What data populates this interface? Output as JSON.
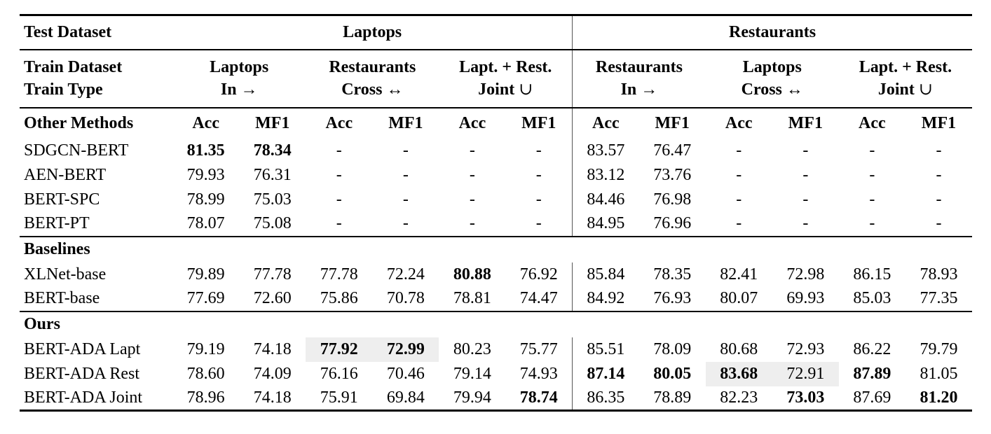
{
  "colors": {
    "background": "#ffffff",
    "text": "#000000",
    "rule": "#000000",
    "divider": "#555555",
    "highlight": "#eeeeee"
  },
  "table": {
    "header": {
      "test_dataset_label": "Test Dataset",
      "test_groups": [
        "Laptops",
        "Restaurants"
      ],
      "train_dataset_label": "Train Dataset",
      "train_type_label": "Train Type",
      "train_groups": [
        {
          "dataset": "Laptops",
          "type": "In",
          "symbol": "→"
        },
        {
          "dataset": "Restaurants",
          "type": "Cross",
          "symbol": "↔"
        },
        {
          "dataset": "Lapt. + Rest.",
          "type": "Joint",
          "symbol": "∪"
        },
        {
          "dataset": "Restaurants",
          "type": "In",
          "symbol": "→"
        },
        {
          "dataset": "Laptops",
          "type": "Cross",
          "symbol": "↔"
        },
        {
          "dataset": "Lapt. + Rest.",
          "type": "Joint",
          "symbol": "∪"
        }
      ],
      "first_section_label": "Other Methods",
      "metric_labels": [
        "Acc",
        "MF1",
        "Acc",
        "MF1",
        "Acc",
        "MF1",
        "Acc",
        "MF1",
        "Acc",
        "MF1",
        "Acc",
        "MF1"
      ]
    },
    "sections": [
      {
        "label": null,
        "rows": [
          {
            "method": "SDGCN-BERT",
            "cells": [
              {
                "text": "81.35",
                "bold": true
              },
              {
                "text": "78.34",
                "bold": true
              },
              {
                "text": "-"
              },
              {
                "text": "-"
              },
              {
                "text": "-"
              },
              {
                "text": "-"
              },
              {
                "text": "83.57"
              },
              {
                "text": "76.47"
              },
              {
                "text": "-"
              },
              {
                "text": "-"
              },
              {
                "text": "-"
              },
              {
                "text": "-"
              }
            ]
          },
          {
            "method": "AEN-BERT",
            "cells": [
              {
                "text": "79.93"
              },
              {
                "text": "76.31"
              },
              {
                "text": "-"
              },
              {
                "text": "-"
              },
              {
                "text": "-"
              },
              {
                "text": "-"
              },
              {
                "text": "83.12"
              },
              {
                "text": "73.76"
              },
              {
                "text": "-"
              },
              {
                "text": "-"
              },
              {
                "text": "-"
              },
              {
                "text": "-"
              }
            ]
          },
          {
            "method": "BERT-SPC",
            "cells": [
              {
                "text": "78.99"
              },
              {
                "text": "75.03"
              },
              {
                "text": "-"
              },
              {
                "text": "-"
              },
              {
                "text": "-"
              },
              {
                "text": "-"
              },
              {
                "text": "84.46"
              },
              {
                "text": "76.98"
              },
              {
                "text": "-"
              },
              {
                "text": "-"
              },
              {
                "text": "-"
              },
              {
                "text": "-"
              }
            ]
          },
          {
            "method": "BERT-PT",
            "cells": [
              {
                "text": "78.07"
              },
              {
                "text": "75.08"
              },
              {
                "text": "-"
              },
              {
                "text": "-"
              },
              {
                "text": "-"
              },
              {
                "text": "-"
              },
              {
                "text": "84.95"
              },
              {
                "text": "76.96"
              },
              {
                "text": "-"
              },
              {
                "text": "-"
              },
              {
                "text": "-"
              },
              {
                "text": "-"
              }
            ]
          }
        ]
      },
      {
        "label": "Baselines",
        "rows": [
          {
            "method": "XLNet-base",
            "cells": [
              {
                "text": "79.89"
              },
              {
                "text": "77.78"
              },
              {
                "text": "77.78"
              },
              {
                "text": "72.24"
              },
              {
                "text": "80.88",
                "bold": true
              },
              {
                "text": "76.92"
              },
              {
                "text": "85.84"
              },
              {
                "text": "78.35"
              },
              {
                "text": "82.41"
              },
              {
                "text": "72.98"
              },
              {
                "text": "86.15"
              },
              {
                "text": "78.93"
              }
            ]
          },
          {
            "method": "BERT-base",
            "cells": [
              {
                "text": "77.69"
              },
              {
                "text": "72.60"
              },
              {
                "text": "75.86"
              },
              {
                "text": "70.78"
              },
              {
                "text": "78.81"
              },
              {
                "text": "74.47"
              },
              {
                "text": "84.92"
              },
              {
                "text": "76.93"
              },
              {
                "text": "80.07"
              },
              {
                "text": "69.93"
              },
              {
                "text": "85.03"
              },
              {
                "text": "77.35"
              }
            ]
          }
        ]
      },
      {
        "label": "Ours",
        "rows": [
          {
            "method": "BERT-ADA Lapt",
            "cells": [
              {
                "text": "79.19"
              },
              {
                "text": "74.18"
              },
              {
                "text": "77.92",
                "bold": true,
                "highlight": true
              },
              {
                "text": "72.99",
                "bold": true,
                "highlight": true
              },
              {
                "text": "80.23"
              },
              {
                "text": "75.77"
              },
              {
                "text": "85.51"
              },
              {
                "text": "78.09"
              },
              {
                "text": "80.68"
              },
              {
                "text": "72.93"
              },
              {
                "text": "86.22"
              },
              {
                "text": "79.79"
              }
            ]
          },
          {
            "method": "BERT-ADA Rest",
            "cells": [
              {
                "text": "78.60"
              },
              {
                "text": "74.09"
              },
              {
                "text": "76.16"
              },
              {
                "text": "70.46"
              },
              {
                "text": "79.14"
              },
              {
                "text": "74.93"
              },
              {
                "text": "87.14",
                "bold": true
              },
              {
                "text": "80.05",
                "bold": true
              },
              {
                "text": "83.68",
                "bold": true,
                "highlight": true
              },
              {
                "text": "72.91",
                "highlight": true
              },
              {
                "text": "87.89",
                "bold": true
              },
              {
                "text": "81.05"
              }
            ]
          },
          {
            "method": "BERT-ADA Joint",
            "cells": [
              {
                "text": "78.96"
              },
              {
                "text": "74.18"
              },
              {
                "text": "75.91"
              },
              {
                "text": "69.84"
              },
              {
                "text": "79.94"
              },
              {
                "text": "78.74",
                "bold": true
              },
              {
                "text": "86.35"
              },
              {
                "text": "78.89"
              },
              {
                "text": "82.23"
              },
              {
                "text": "73.03",
                "bold": true
              },
              {
                "text": "87.69"
              },
              {
                "text": "81.20",
                "bold": true
              }
            ]
          }
        ]
      }
    ]
  }
}
